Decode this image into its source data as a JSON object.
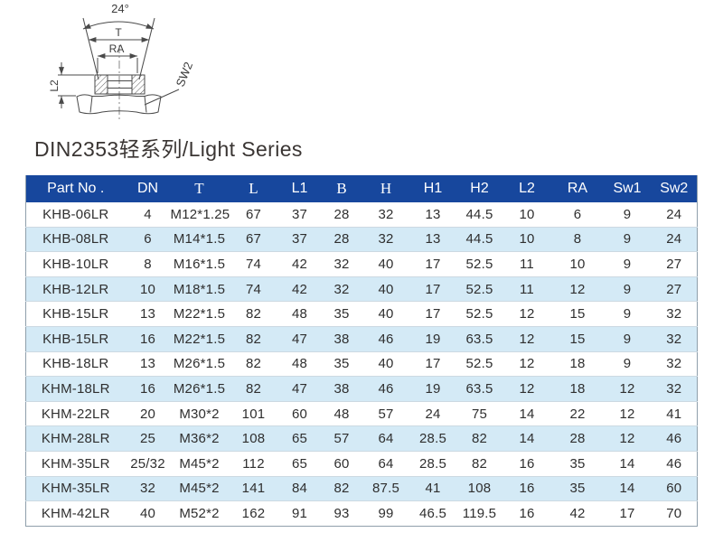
{
  "title": "DIN2353轻系列/Light Series",
  "diagram": {
    "angle_label": "24°",
    "t_label": "T",
    "ra_label": "RA",
    "l2_label": "L2",
    "sw2_label": "SW2"
  },
  "colors": {
    "header_bg": "#17479d",
    "header_text": "#ffffff",
    "row_bg": "#ffffff",
    "row_alt_bg": "#d4eaf6",
    "body_text": "#2f2f2f",
    "table_border": "#8f9fab"
  },
  "table": {
    "columns": [
      {
        "key": "part_no",
        "label": "Part No .",
        "serif": false
      },
      {
        "key": "dn",
        "label": "DN",
        "serif": false
      },
      {
        "key": "t",
        "label": "T",
        "serif": true
      },
      {
        "key": "l",
        "label": "L",
        "serif": true
      },
      {
        "key": "l1",
        "label": "L1",
        "serif": false
      },
      {
        "key": "b",
        "label": "B",
        "serif": true
      },
      {
        "key": "h",
        "label": "H",
        "serif": true
      },
      {
        "key": "h1",
        "label": "H1",
        "serif": false
      },
      {
        "key": "h2",
        "label": "H2",
        "serif": false
      },
      {
        "key": "l2",
        "label": "L2",
        "serif": false
      },
      {
        "key": "ra",
        "label": "RA",
        "serif": false
      },
      {
        "key": "sw1",
        "label": "Sw1",
        "serif": false
      },
      {
        "key": "sw2",
        "label": "Sw2",
        "serif": false
      }
    ],
    "rows": [
      [
        "KHB-06LR",
        "4",
        "M12*1.25",
        "67",
        "37",
        "28",
        "32",
        "13",
        "44.5",
        "10",
        "6",
        "9",
        "24"
      ],
      [
        "KHB-08LR",
        "6",
        "M14*1.5",
        "67",
        "37",
        "28",
        "32",
        "13",
        "44.5",
        "10",
        "8",
        "9",
        "24"
      ],
      [
        "KHB-10LR",
        "8",
        "M16*1.5",
        "74",
        "42",
        "32",
        "40",
        "17",
        "52.5",
        "11",
        "10",
        "9",
        "27"
      ],
      [
        "KHB-12LR",
        "10",
        "M18*1.5",
        "74",
        "42",
        "32",
        "40",
        "17",
        "52.5",
        "11",
        "12",
        "9",
        "27"
      ],
      [
        "KHB-15LR",
        "13",
        "M22*1.5",
        "82",
        "48",
        "35",
        "40",
        "17",
        "52.5",
        "12",
        "15",
        "9",
        "32"
      ],
      [
        "KHB-15LR",
        "16",
        "M22*1.5",
        "82",
        "47",
        "38",
        "46",
        "19",
        "63.5",
        "12",
        "15",
        "9",
        "32"
      ],
      [
        "KHB-18LR",
        "13",
        "M26*1.5",
        "82",
        "48",
        "35",
        "40",
        "17",
        "52.5",
        "12",
        "18",
        "9",
        "32"
      ],
      [
        "KHM-18LR",
        "16",
        "M26*1.5",
        "82",
        "47",
        "38",
        "46",
        "19",
        "63.5",
        "12",
        "18",
        "12",
        "32"
      ],
      [
        "KHM-22LR",
        "20",
        "M30*2",
        "101",
        "60",
        "48",
        "57",
        "24",
        "75",
        "14",
        "22",
        "12",
        "41"
      ],
      [
        "KHM-28LR",
        "25",
        "M36*2",
        "108",
        "65",
        "57",
        "64",
        "28.5",
        "82",
        "14",
        "28",
        "12",
        "46"
      ],
      [
        "KHM-35LR",
        "25/32",
        "M45*2",
        "112",
        "65",
        "60",
        "64",
        "28.5",
        "82",
        "16",
        "35",
        "14",
        "46"
      ],
      [
        "KHM-35LR",
        "32",
        "M45*2",
        "141",
        "84",
        "82",
        "87.5",
        "41",
        "108",
        "16",
        "35",
        "14",
        "60"
      ],
      [
        "KHM-42LR",
        "40",
        "M52*2",
        "162",
        "91",
        "93",
        "99",
        "46.5",
        "119.5",
        "16",
        "42",
        "17",
        "70"
      ]
    ]
  }
}
